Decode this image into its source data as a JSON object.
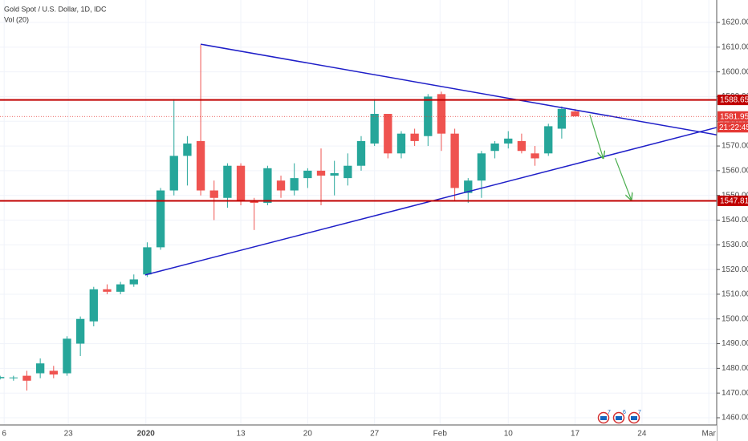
{
  "chart_data": {
    "type": "candlestick",
    "title": "Gold Spot / U.S. Dollar, 1D, IDC",
    "subtitle": "Vol (20)",
    "x": [
      0,
      1,
      2,
      3,
      4,
      5,
      6,
      7,
      8,
      9,
      10,
      11,
      12,
      13,
      14,
      15,
      16,
      17,
      18,
      19,
      20,
      21,
      22,
      23,
      24,
      25,
      26,
      27,
      28,
      29,
      30,
      31,
      32,
      33,
      34,
      35,
      36,
      37,
      38,
      39,
      40,
      41,
      42,
      43
    ],
    "open": [
      1476,
      1476,
      1477,
      1478,
      1479,
      1478,
      1490,
      1499,
      1512,
      1511,
      1514,
      1518,
      1529,
      1552,
      1566,
      1572,
      1552,
      1549,
      1562,
      1548,
      1547,
      1556,
      1552,
      1557,
      1560,
      1558,
      1557,
      1562,
      1571,
      1583,
      1567,
      1575,
      1574,
      1591,
      1575,
      1551,
      1556,
      1568,
      1571,
      1572,
      1567,
      1567,
      1577,
      1584
    ],
    "high": [
      1477,
      1477,
      1479,
      1484,
      1481,
      1493,
      1501,
      1513,
      1514,
      1515,
      1518,
      1531,
      1553,
      1589,
      1574,
      1611,
      1556,
      1563,
      1563,
      1549,
      1562,
      1558,
      1563,
      1561,
      1569,
      1564,
      1567,
      1574,
      1589,
      1583,
      1576,
      1577,
      1591,
      1592,
      1577,
      1557,
      1568,
      1572,
      1576,
      1575,
      1570,
      1579,
      1586,
      1585
    ],
    "low": [
      1475.5,
      1475,
      1471,
      1476,
      1476,
      1477,
      1485,
      1497,
      1510,
      1510,
      1513,
      1517,
      1528,
      1550,
      1554,
      1550,
      1540,
      1545,
      1546,
      1536,
      1546,
      1549,
      1550,
      1553,
      1546,
      1550,
      1554,
      1560,
      1570,
      1565,
      1565,
      1570,
      1570,
      1568,
      1548,
      1547,
      1549,
      1565,
      1569,
      1567,
      1562,
      1566,
      1573,
      1582
    ],
    "close": [
      1476.5,
      1476.3,
      1475,
      1482,
      1477.5,
      1492,
      1500,
      1512,
      1511,
      1514,
      1516,
      1529,
      1552,
      1566,
      1571,
      1552,
      1549,
      1562,
      1548,
      1547,
      1561,
      1552,
      1557,
      1560,
      1558,
      1559,
      1562,
      1572,
      1583,
      1567,
      1575,
      1572,
      1590,
      1575,
      1553,
      1556,
      1567,
      1571,
      1573,
      1568,
      1565,
      1578,
      1585,
      1582
    ],
    "up_color": "#26a69a",
    "down_color": "#ef5350",
    "xlim": [
      -0.01,
      53.59
    ],
    "ylim": [
      1457.08,
      1629.09
    ],
    "xticks": [
      {
        "value": 0.3,
        "label": "6"
      },
      {
        "value": 5.1,
        "label": "23"
      },
      {
        "value": 10.9,
        "label": "2020"
      },
      {
        "value": 18,
        "label": "13"
      },
      {
        "value": 23,
        "label": "20"
      },
      {
        "value": 28,
        "label": "27"
      },
      {
        "value": 32.9,
        "label": "Feb"
      },
      {
        "value": 38,
        "label": "10"
      },
      {
        "value": 43,
        "label": "17"
      },
      {
        "value": 48,
        "label": "24"
      },
      {
        "value": 53,
        "label": "Mar"
      }
    ],
    "yticks": [
      {
        "value": 1460,
        "label": "1460.00"
      },
      {
        "value": 1470,
        "label": "1470.00"
      },
      {
        "value": 1480,
        "label": "1480.00"
      },
      {
        "value": 1490,
        "label": "1490.00"
      },
      {
        "value": 1500,
        "label": "1500.00"
      },
      {
        "value": 1510,
        "label": "1510.00"
      },
      {
        "value": 1520,
        "label": "1520.00"
      },
      {
        "value": 1530,
        "label": "1530.00"
      },
      {
        "value": 1540,
        "label": "1540.00"
      },
      {
        "value": 1550,
        "label": "1550.00"
      },
      {
        "value": 1560,
        "label": "1560.00"
      },
      {
        "value": 1570,
        "label": "1570.00"
      },
      {
        "value": 1580,
        "label": "1580.00"
      },
      {
        "value": 1590,
        "label": "1590.00"
      },
      {
        "value": 1600,
        "label": "1600.00"
      },
      {
        "value": 1610,
        "label": "1610.00"
      },
      {
        "value": 1620,
        "label": "1620.00"
      }
    ],
    "grid": true,
    "levels": [
      {
        "value": 1588.65,
        "style": "solid",
        "color": "#c00000"
      },
      {
        "value": 1581.95,
        "style": "dotted",
        "color": "#e53935"
      },
      {
        "value": 1547.81,
        "style": "solid",
        "color": "#c00000"
      }
    ],
    "countdown": "21:22:45",
    "trendlines": [
      {
        "x": [
          15,
          53.6
        ],
        "y": [
          1611.2,
          1574.5
        ],
        "color": "#1f1fc8"
      },
      {
        "x": [
          10.85,
          53.6
        ],
        "y": [
          1517.8,
          1577.5
        ],
        "color": "#1f1fc8"
      }
    ],
    "arrows": [
      {
        "x": [
          44.1,
          45.1
        ],
        "y": [
          1582.7,
          1565.1
        ],
        "color": "#4caf50"
      },
      {
        "x": [
          46,
          47.2
        ],
        "y": [
          1565.1,
          1548.2
        ],
        "color": "#4caf50"
      }
    ],
    "badges": [
      "7",
      "6",
      "7"
    ]
  }
}
